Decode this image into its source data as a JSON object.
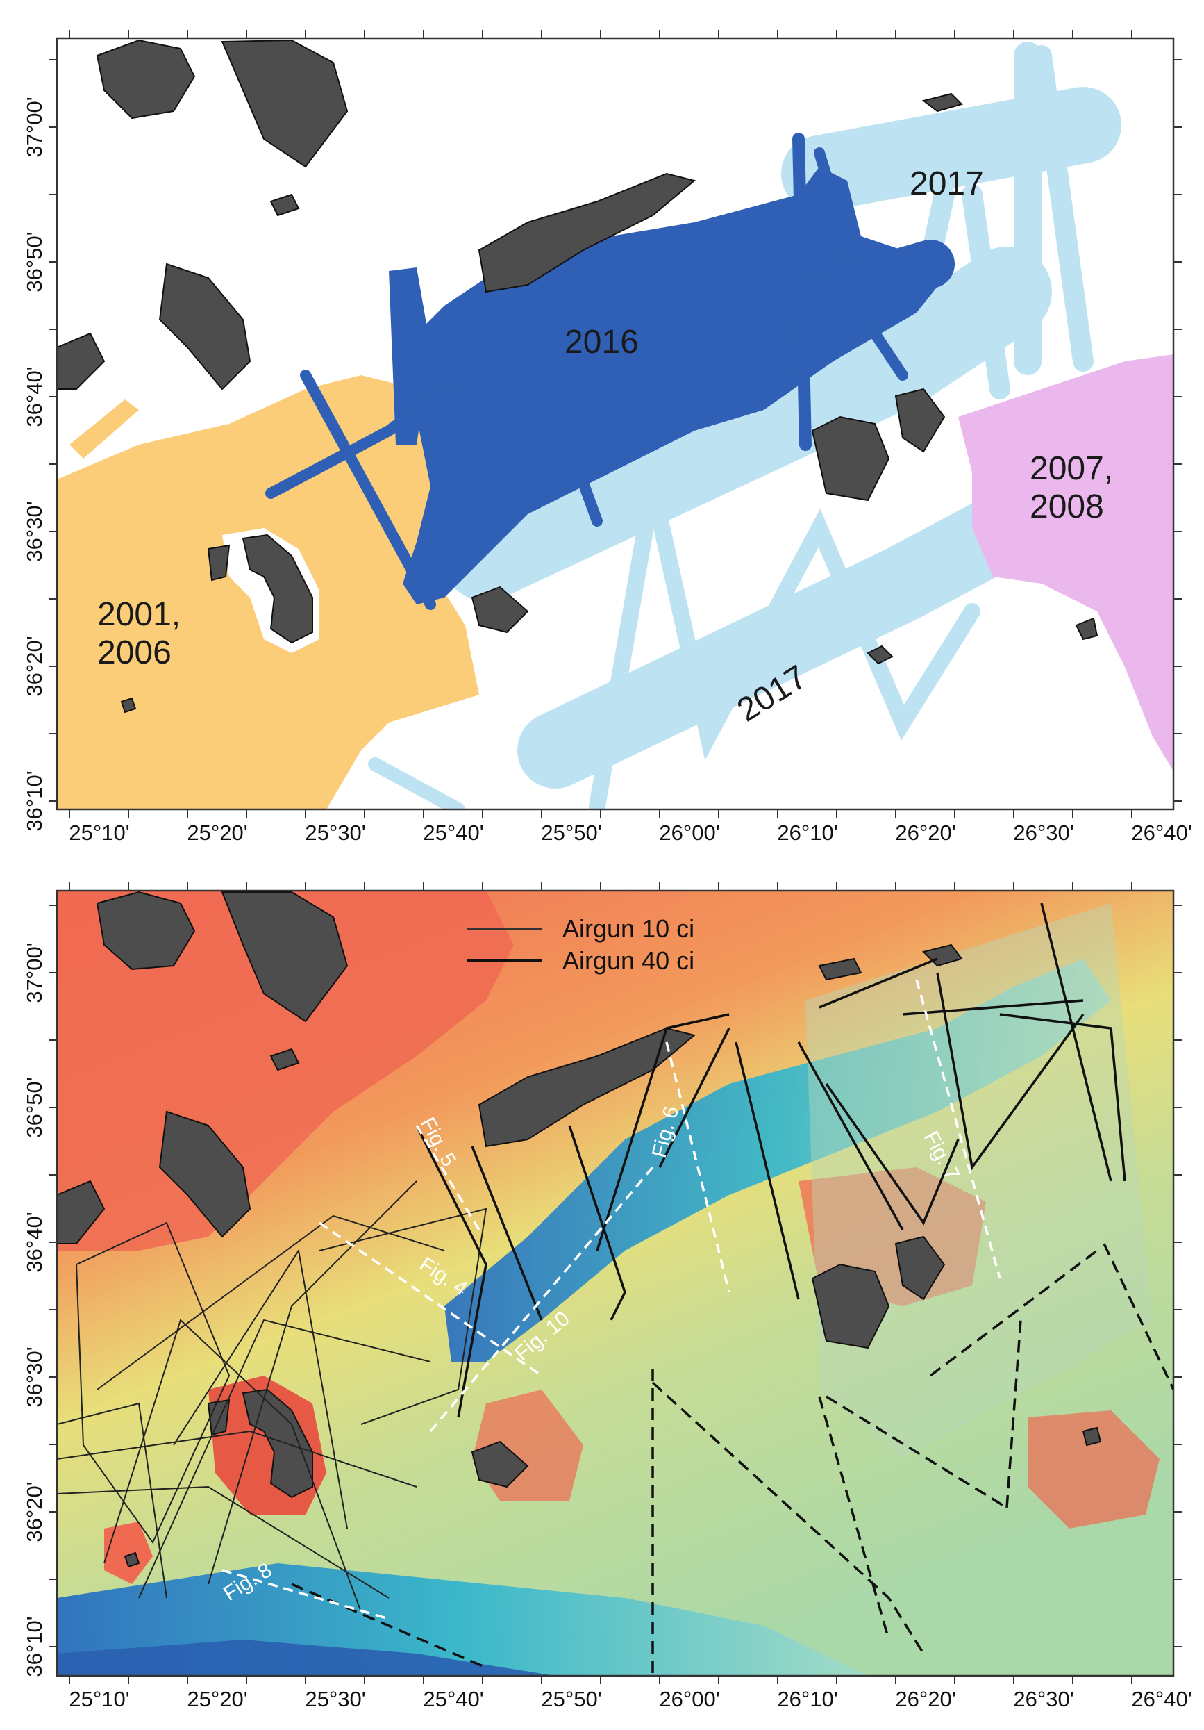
{
  "top_map": {
    "x_ticks": [
      "25°10'",
      "25°20'",
      "25°30'",
      "25°40'",
      "25°50'",
      "26°00'",
      "26°10'",
      "26°20'",
      "26°30'",
      "26°40'"
    ],
    "y_ticks": [
      "37°00'",
      "36°50'",
      "36°40'",
      "36°30'",
      "36°20'",
      "36°10'"
    ],
    "surveys": [
      {
        "label": "2001, 2006",
        "line1": "2001,",
        "line2": "2006",
        "color": "#fccd78"
      },
      {
        "label": "2016",
        "color": "#3060b5"
      },
      {
        "label": "2017",
        "color": "#bde3f3"
      },
      {
        "label": "2007, 2008",
        "line1": "2007,",
        "line2": "2008",
        "color": "#ebb8ee"
      }
    ],
    "label_2017_upper": "2017",
    "label_2017_lower": "2017"
  },
  "bottom_map": {
    "x_ticks": [
      "25°10'",
      "25°20'",
      "25°30'",
      "25°40'",
      "25°50'",
      "26°00'",
      "26°10'",
      "26°20'",
      "26°30'",
      "26°40'"
    ],
    "y_ticks": [
      "37°00'",
      "36°50'",
      "36°40'",
      "36°30'",
      "36°20'",
      "36°10'"
    ],
    "legend": [
      {
        "label": "Airgun 10 ci",
        "line": "thin"
      },
      {
        "label": "Airgun 40 ci",
        "line": "thick"
      }
    ],
    "figure_labels": [
      "Fig. 4",
      "Fig. 5",
      "Fig. 6",
      "Fig. 7",
      "Fig. 8",
      "Fig. 10"
    ]
  }
}
